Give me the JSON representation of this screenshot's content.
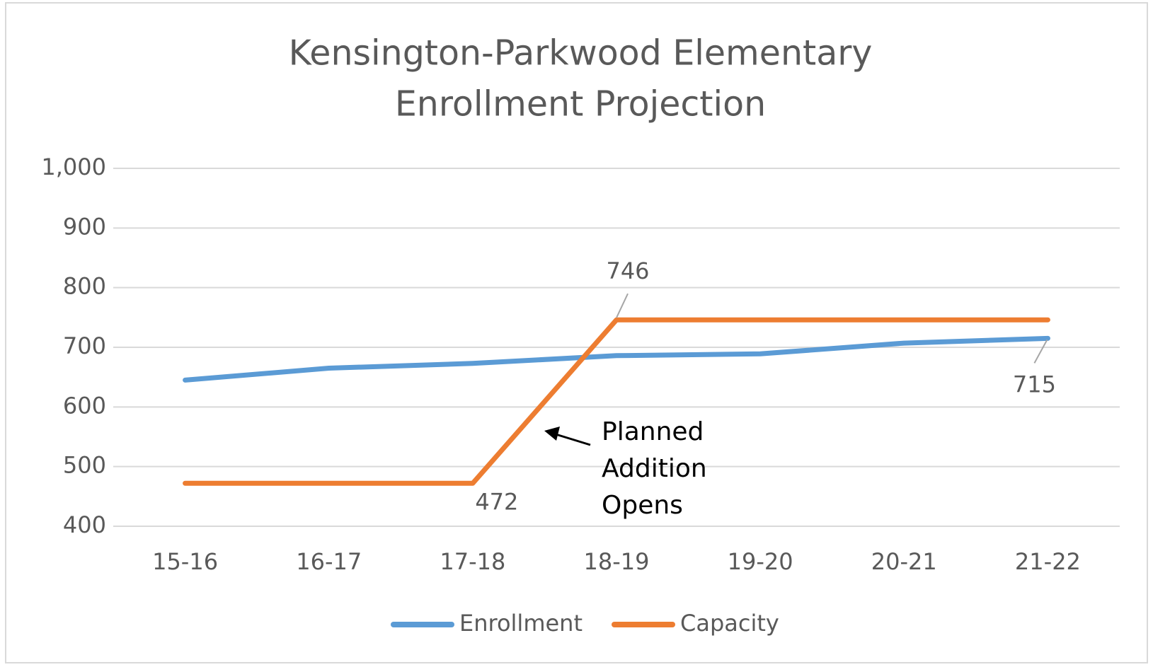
{
  "chart_data": {
    "type": "line",
    "title": [
      "Kensington-Parkwood Elementary",
      "Enrollment Projection"
    ],
    "categories": [
      "15-16",
      "16-17",
      "17-18",
      "18-19",
      "19-20",
      "20-21",
      "21-22"
    ],
    "series": [
      {
        "name": "Enrollment",
        "color": "#5b9bd5",
        "values": [
          645,
          665,
          673,
          686,
          689,
          707,
          715
        ],
        "value_labels": [
          null,
          null,
          null,
          null,
          null,
          null,
          "715"
        ]
      },
      {
        "name": "Capacity",
        "color": "#ed7d31",
        "values": [
          472,
          472,
          472,
          746,
          746,
          746,
          746
        ],
        "value_labels": [
          null,
          null,
          "472",
          "746",
          null,
          null,
          null
        ]
      }
    ],
    "ylim": [
      400,
      1000
    ],
    "yticks": [
      400,
      500,
      600,
      700,
      800,
      900,
      {
        "value": 1000,
        "label": "1,000"
      }
    ],
    "grid": true,
    "legend": "bottom",
    "annotation": [
      "Planned",
      "Addition",
      "Opens"
    ]
  }
}
